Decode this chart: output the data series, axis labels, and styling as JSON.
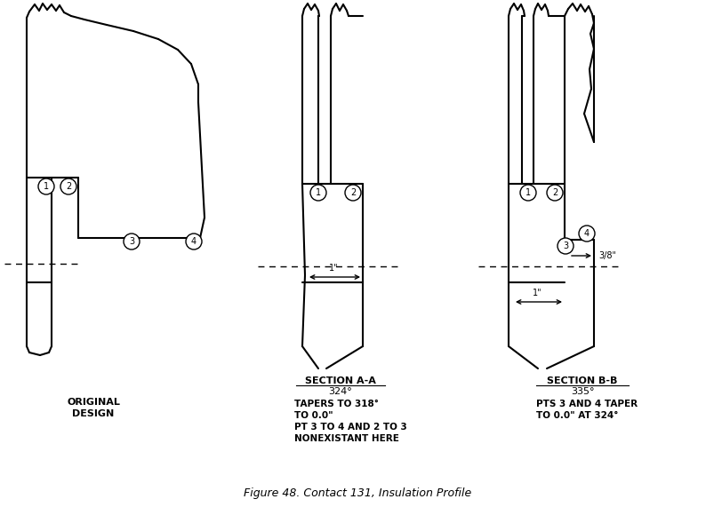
{
  "title": "Figure 48. Contact 131, Insulation Profile",
  "background_color": "#ffffff",
  "line_color": "#000000",
  "fig_width": 8.04,
  "fig_height": 5.8,
  "labels": {
    "left_title1": "ORIGINAL",
    "left_title2": "DESIGN",
    "mid_title": "SECTION A-A",
    "mid_sub1": "324°",
    "mid_sub2": "TAPERS TO 318°",
    "mid_sub3": "TO 0.0\"",
    "mid_sub4": "PT 3 TO 4 AND 2 TO 3",
    "mid_sub5": "NONEXISTANT HERE",
    "right_title": "SECTION B-B",
    "right_sub1": "335°",
    "right_sub2": "PTS 3 AND 4 TAPER",
    "right_sub3": "TO 0.0\" AT 324°"
  }
}
